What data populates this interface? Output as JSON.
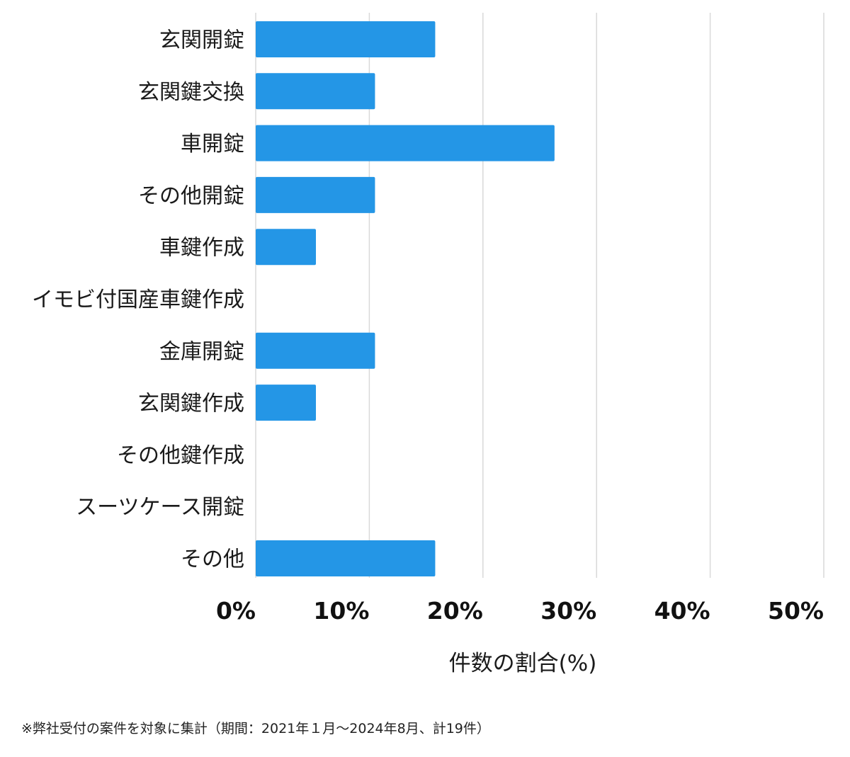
{
  "chart_data": {
    "type": "bar",
    "orientation": "horizontal",
    "categories": [
      "玄関開錠",
      "玄関鍵交換",
      "車開錠",
      "その他開錠",
      "車鍵作成",
      "イモビ付国産車鍵作成",
      "金庫開錠",
      "玄関鍵作成",
      "その他鍵作成",
      "スーツケース開錠",
      "その他"
    ],
    "values": [
      15.8,
      10.5,
      26.3,
      10.5,
      5.3,
      0,
      10.5,
      5.3,
      0,
      0,
      15.8
    ],
    "xlabel": "件数の割合(%)",
    "xlim": [
      0,
      50
    ],
    "ticks": [
      "0%",
      "10%",
      "20%",
      "30%",
      "40%",
      "50%"
    ],
    "tick_values": [
      0,
      10,
      20,
      30,
      40,
      50
    ],
    "grid": "vertical",
    "legend": "none",
    "bar_color": "#2496e6",
    "grid_color": "#d9d9d9"
  },
  "footnote": "※弊社受付の案件を対象に集計（期間：2021年１月〜2024年8月、計19件）"
}
